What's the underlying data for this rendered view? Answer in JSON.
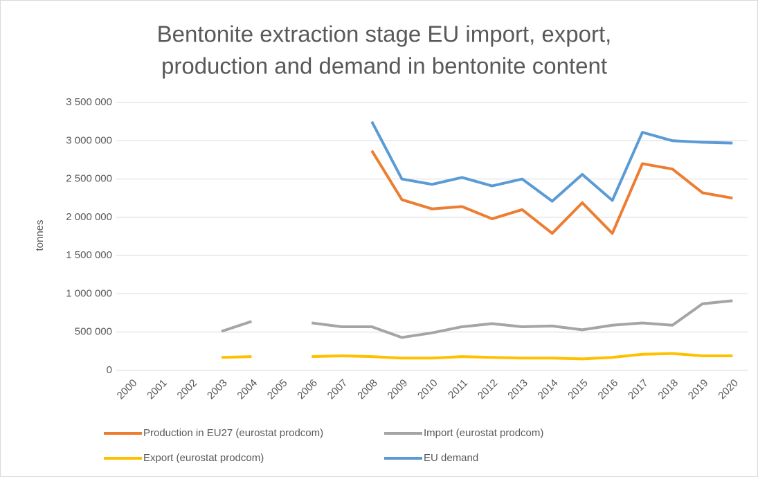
{
  "chart_data": {
    "type": "line",
    "title": [
      "Bentonite extraction stage EU import, export,",
      "production and demand in bentonite content"
    ],
    "y_label": "tonnes",
    "categories": [
      "2000",
      "2001",
      "2002",
      "2003",
      "2004",
      "2005",
      "2006",
      "2007",
      "2008",
      "2009",
      "2010",
      "2011",
      "2012",
      "2013",
      "2014",
      "2015",
      "2016",
      "2017",
      "2018",
      "2019",
      "2020"
    ],
    "ylim": [
      0,
      3500000
    ],
    "yticks": [
      0,
      {
        "value": 500000,
        "label": "500 000"
      },
      {
        "value": 1000000,
        "label": "1 000 000"
      },
      {
        "value": 1500000,
        "label": "1 500 000"
      },
      {
        "value": 2000000,
        "label": "2 000 000"
      },
      {
        "value": 2500000,
        "label": "2 500 000"
      },
      {
        "value": 3000000,
        "label": "3 000 000"
      },
      {
        "value": 3500000,
        "label": "3 500 000"
      }
    ],
    "grid": true,
    "legend": "bottom",
    "series": [
      {
        "name": "Production in EU27 (eurostat prodcom)",
        "color": "#ed7d31",
        "values": [
          null,
          null,
          null,
          null,
          null,
          null,
          null,
          null,
          2870000,
          2230000,
          2110000,
          2140000,
          1980000,
          2100000,
          1790000,
          2190000,
          1790000,
          2700000,
          2630000,
          2320000,
          2250000
        ]
      },
      {
        "name": "Import (eurostat prodcom)",
        "color": "#a5a5a5",
        "values": [
          null,
          null,
          null,
          510000,
          640000,
          null,
          620000,
          570000,
          570000,
          430000,
          490000,
          570000,
          610000,
          570000,
          580000,
          530000,
          590000,
          620000,
          590000,
          870000,
          910000
        ]
      },
      {
        "name": "Export (eurostat prodcom)",
        "color": "#ffc000",
        "values": [
          null,
          null,
          null,
          170000,
          180000,
          null,
          180000,
          190000,
          180000,
          160000,
          160000,
          180000,
          170000,
          160000,
          160000,
          150000,
          170000,
          210000,
          220000,
          190000,
          190000
        ]
      },
      {
        "name": "EU demand",
        "color": "#5b9bd5",
        "values": [
          null,
          null,
          null,
          null,
          null,
          null,
          null,
          null,
          3250000,
          2500000,
          2430000,
          2520000,
          2410000,
          2500000,
          2210000,
          2560000,
          2220000,
          3110000,
          3000000,
          2980000,
          2970000
        ]
      }
    ]
  }
}
